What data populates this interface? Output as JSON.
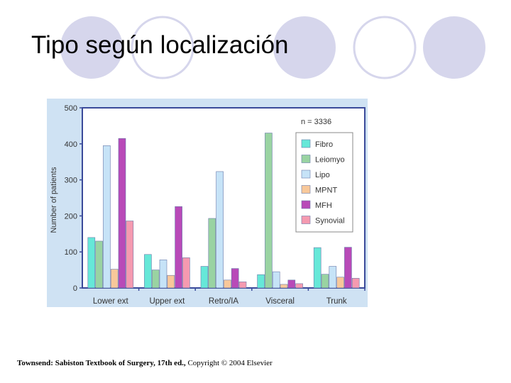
{
  "slide": {
    "title": "Tipo según localización",
    "footer_source": "Townsend: Sabiston Textbook of Surgery, 17th ed.,",
    "footer_copyright": "Copyright © 2004 Elsevier",
    "decor_circles": [
      "filled",
      "outline",
      "filled",
      "outline",
      "filled"
    ],
    "decor_colors": {
      "filled": "#d6d6ec",
      "outline": "#d6d6ec"
    }
  },
  "chart_data": {
    "type": "bar",
    "title": "",
    "xlabel": "",
    "ylabel": "Number of patients",
    "ylim": [
      0,
      500
    ],
    "yticks": [
      "0",
      "100",
      "200",
      "300",
      "400",
      "500"
    ],
    "annotation": "n = 3336",
    "legend_position": "top-right",
    "categories": [
      "Lower ext",
      "Upper ext",
      "Retro/IA",
      "Visceral",
      "Trunk"
    ],
    "series": [
      {
        "name": "Fibro",
        "color": "#66e8d8",
        "values": [
          140,
          93,
          60,
          37,
          112
        ]
      },
      {
        "name": "Leiomyo",
        "color": "#99d3a2",
        "values": [
          130,
          50,
          193,
          430,
          38
        ]
      },
      {
        "name": "Lipo",
        "color": "#c6e3f7",
        "values": [
          395,
          78,
          323,
          45,
          60
        ]
      },
      {
        "name": "MPNT",
        "color": "#f8c89a",
        "values": [
          52,
          35,
          22,
          10,
          30
        ]
      },
      {
        "name": "MFH",
        "color": "#b84ab8",
        "values": [
          415,
          226,
          54,
          22,
          113
        ]
      },
      {
        "name": "Synovial",
        "color": "#f59ab0",
        "values": [
          186,
          84,
          17,
          12,
          27
        ]
      }
    ],
    "plot_bg": "#ffffff",
    "frame_bg": "#cfe2f3",
    "axis_color": "#3a4a9a"
  }
}
